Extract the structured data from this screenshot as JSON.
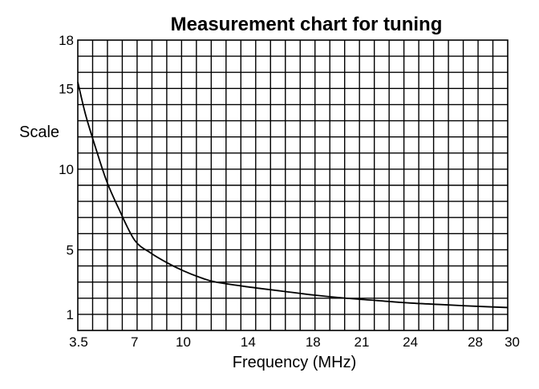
{
  "chart_data": {
    "type": "line",
    "title": "Measurement chart for tuning",
    "xlabel": "Frequency (MHz)",
    "ylabel": "Scale",
    "xlim": [
      3.5,
      30
    ],
    "ylim": [
      0,
      18
    ],
    "x_ticks": [
      {
        "value": 3.5,
        "label": "3.5"
      },
      {
        "value": 7,
        "label": "7"
      },
      {
        "value": 10,
        "label": "10"
      },
      {
        "value": 14,
        "label": "14"
      },
      {
        "value": 18,
        "label": "18"
      },
      {
        "value": 21,
        "label": "21"
      },
      {
        "value": 24,
        "label": "24"
      },
      {
        "value": 28,
        "label": "28"
      },
      {
        "value": 30,
        "label": "30"
      }
    ],
    "y_ticks": [
      {
        "value": 1,
        "label": "1"
      },
      {
        "value": 5,
        "label": "5"
      },
      {
        "value": 10,
        "label": "10"
      },
      {
        "value": 15,
        "label": "15"
      },
      {
        "value": 18,
        "label": "18"
      }
    ],
    "grid": true,
    "grid_columns": 29,
    "grid_rows": 18,
    "series": [
      {
        "color": "#000000",
        "x": [
          3.5,
          4.0,
          4.7,
          5.3,
          6.0,
          7.0,
          8.0,
          9.0,
          10.0,
          11.0,
          12.0,
          14.0,
          16.0,
          18.0,
          20.0,
          22.0,
          24.0,
          26.0,
          28.0,
          30.0
        ],
        "y": [
          15.4,
          13.3,
          11.0,
          9.2,
          7.6,
          5.6,
          4.8,
          4.2,
          3.7,
          3.3,
          3.0,
          2.7,
          2.45,
          2.2,
          2.0,
          1.85,
          1.7,
          1.6,
          1.5,
          1.42
        ]
      }
    ]
  }
}
